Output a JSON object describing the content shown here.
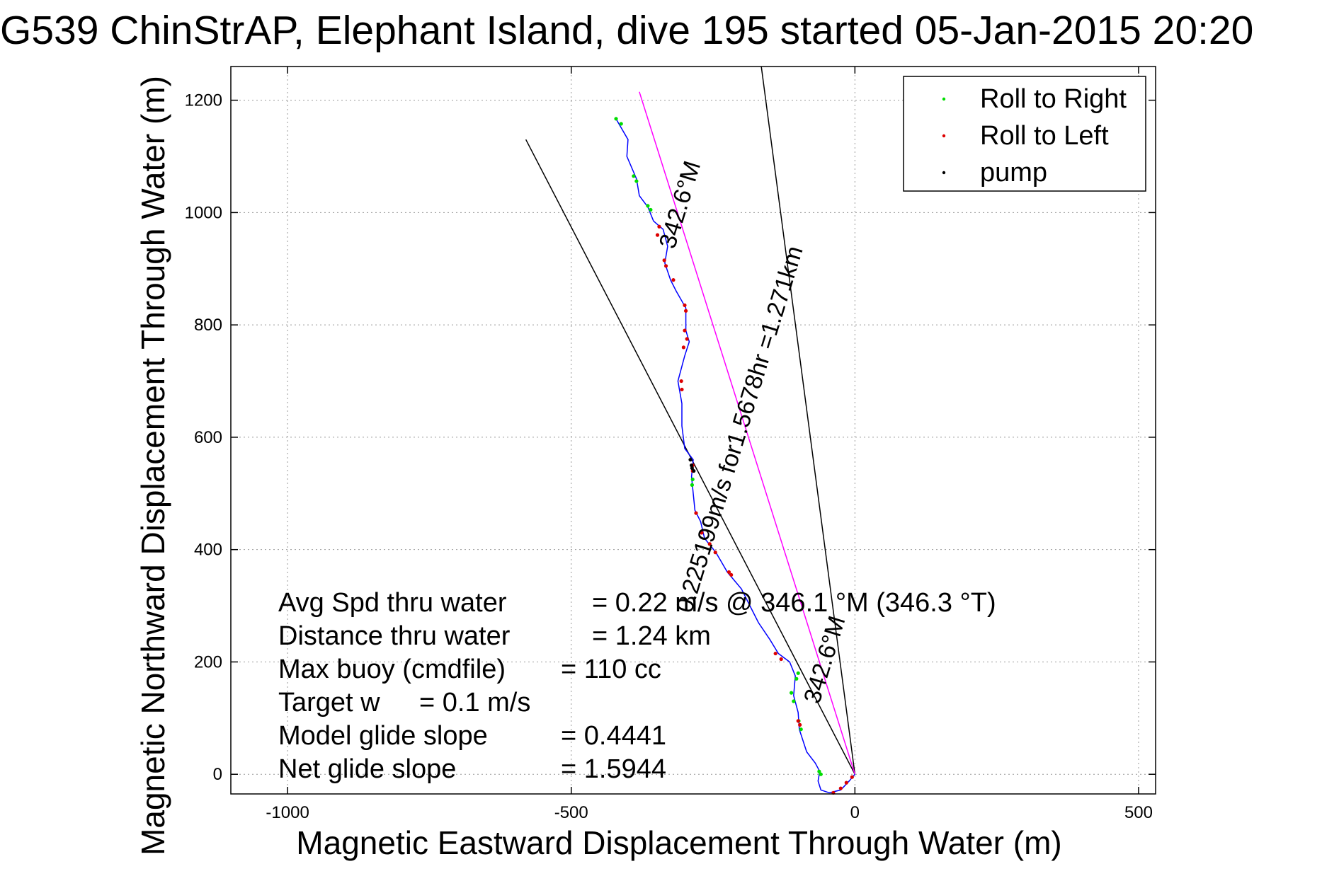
{
  "title": "G539 ChinStrAP, Elephant Island, dive 195 started 05-Jan-2015 20:20",
  "chart_data": {
    "type": "line",
    "xlabel": "Magnetic Eastward Displacement Through Water (m)",
    "ylabel": "Magnetic Northward Displacement Through Water (m)",
    "xlim": [
      -1100,
      530
    ],
    "ylim": [
      -35,
      1260
    ],
    "xticks": [
      -1000,
      -500,
      0,
      500
    ],
    "yticks": [
      0,
      200,
      400,
      600,
      800,
      1000,
      1200
    ],
    "xtick_labels": [
      "-1000",
      "-500",
      "0",
      "500"
    ],
    "ytick_labels": [
      "0",
      "200",
      "400",
      "600",
      "800",
      "1000",
      "1200"
    ],
    "grid": true,
    "legend_position": "top-right",
    "legend": [
      {
        "label": "Roll to Right",
        "color": "#00dd00"
      },
      {
        "label": "Roll to Left",
        "color": "#dd0000"
      },
      {
        "label": "pump",
        "color": "#000000"
      }
    ],
    "track": {
      "color": "#0000ff",
      "points": [
        [
          0,
          0
        ],
        [
          -10,
          -12
        ],
        [
          -25,
          -28
        ],
        [
          -45,
          -33
        ],
        [
          -60,
          -28
        ],
        [
          -65,
          -12
        ],
        [
          -62,
          5
        ],
        [
          -70,
          20
        ],
        [
          -85,
          40
        ],
        [
          -98,
          80
        ],
        [
          -100,
          110
        ],
        [
          -108,
          140
        ],
        [
          -105,
          175
        ],
        [
          -115,
          200
        ],
        [
          -135,
          215
        ],
        [
          -150,
          240
        ],
        [
          -170,
          270
        ],
        [
          -185,
          300
        ],
        [
          -200,
          330
        ],
        [
          -225,
          360
        ],
        [
          -245,
          395
        ],
        [
          -265,
          420
        ],
        [
          -272,
          450
        ],
        [
          -282,
          470
        ],
        [
          -285,
          500
        ],
        [
          -288,
          530
        ],
        [
          -285,
          560
        ],
        [
          -300,
          580
        ],
        [
          -305,
          620
        ],
        [
          -305,
          660
        ],
        [
          -312,
          700
        ],
        [
          -300,
          745
        ],
        [
          -292,
          770
        ],
        [
          -298,
          790
        ],
        [
          -298,
          830
        ],
        [
          -315,
          860
        ],
        [
          -325,
          880
        ],
        [
          -335,
          910
        ],
        [
          -330,
          940
        ],
        [
          -338,
          970
        ],
        [
          -355,
          985
        ],
        [
          -365,
          1010
        ],
        [
          -380,
          1030
        ],
        [
          -385,
          1060
        ],
        [
          -402,
          1100
        ],
        [
          -400,
          1130
        ],
        [
          -420,
          1165
        ]
      ],
      "roll_right": [
        [
          -421,
          1167
        ],
        [
          -412,
          1158
        ],
        [
          -390,
          1065
        ],
        [
          -385,
          1056
        ],
        [
          -365,
          1012
        ],
        [
          -360,
          1005
        ],
        [
          -112,
          145
        ],
        [
          -108,
          130
        ],
        [
          -99,
          95
        ],
        [
          -95,
          80
        ],
        [
          -63,
          5
        ],
        [
          -60,
          0
        ],
        [
          -100,
          180
        ],
        [
          -103,
          170
        ],
        [
          -286,
          525
        ],
        [
          -287,
          515
        ]
      ],
      "roll_left": [
        [
          -345,
          975
        ],
        [
          -348,
          960
        ],
        [
          -336,
          915
        ],
        [
          -333,
          905
        ],
        [
          -320,
          880
        ],
        [
          -300,
          835
        ],
        [
          -298,
          825
        ],
        [
          -302,
          760
        ],
        [
          -296,
          775
        ],
        [
          -300,
          790
        ],
        [
          -306,
          700
        ],
        [
          -305,
          685
        ],
        [
          -286,
          550
        ],
        [
          -286,
          540
        ],
        [
          -280,
          465
        ],
        [
          -270,
          430
        ],
        [
          -256,
          410
        ],
        [
          -246,
          395
        ],
        [
          -222,
          360
        ],
        [
          -218,
          355
        ],
        [
          -140,
          215
        ],
        [
          -130,
          205
        ],
        [
          -100,
          95
        ],
        [
          -97,
          88
        ],
        [
          -38,
          -33
        ],
        [
          -25,
          -25
        ],
        [
          -15,
          -15
        ],
        [
          -5,
          -5
        ]
      ],
      "pump": [
        [
          -290,
          560
        ],
        [
          -288,
          550
        ],
        [
          -287,
          545
        ],
        [
          -284,
          540
        ]
      ]
    },
    "lines": [
      {
        "color": "#000000",
        "points": [
          [
            0,
            0
          ],
          [
            -580,
            1130
          ]
        ]
      },
      {
        "color": "#000000",
        "points": [
          [
            0,
            0
          ],
          [
            -165,
            1260
          ]
        ]
      },
      {
        "color": "#ff00ff",
        "points": [
          [
            0,
            0
          ],
          [
            -380,
            1215
          ]
        ]
      }
    ],
    "annotations": [
      {
        "text": "342.6°M",
        "x": -295,
        "y": 1010,
        "angle": -73
      },
      {
        "text": "0.225199m/s for1.5678hr =1.271km",
        "x": -190,
        "y": 610,
        "angle": -73
      },
      {
        "text": "342.6°M",
        "x": -40,
        "y": 200,
        "angle": -73
      }
    ],
    "stats": [
      {
        "label": "Avg Spd thru water",
        "value": "=  0.22 m/s @ 346.1 °M (346.3 °T)"
      },
      {
        "label": "Distance thru water",
        "value": "=  1.24 km"
      },
      {
        "label": "Max buoy (cmdfile)",
        "value": "= 110 cc"
      },
      {
        "label": "Target w",
        "value": "= 0.1 m/s"
      },
      {
        "label": "Model glide slope",
        "value": "= 0.4441"
      },
      {
        "label": "Net glide slope",
        "value": "= 1.5944"
      }
    ]
  }
}
